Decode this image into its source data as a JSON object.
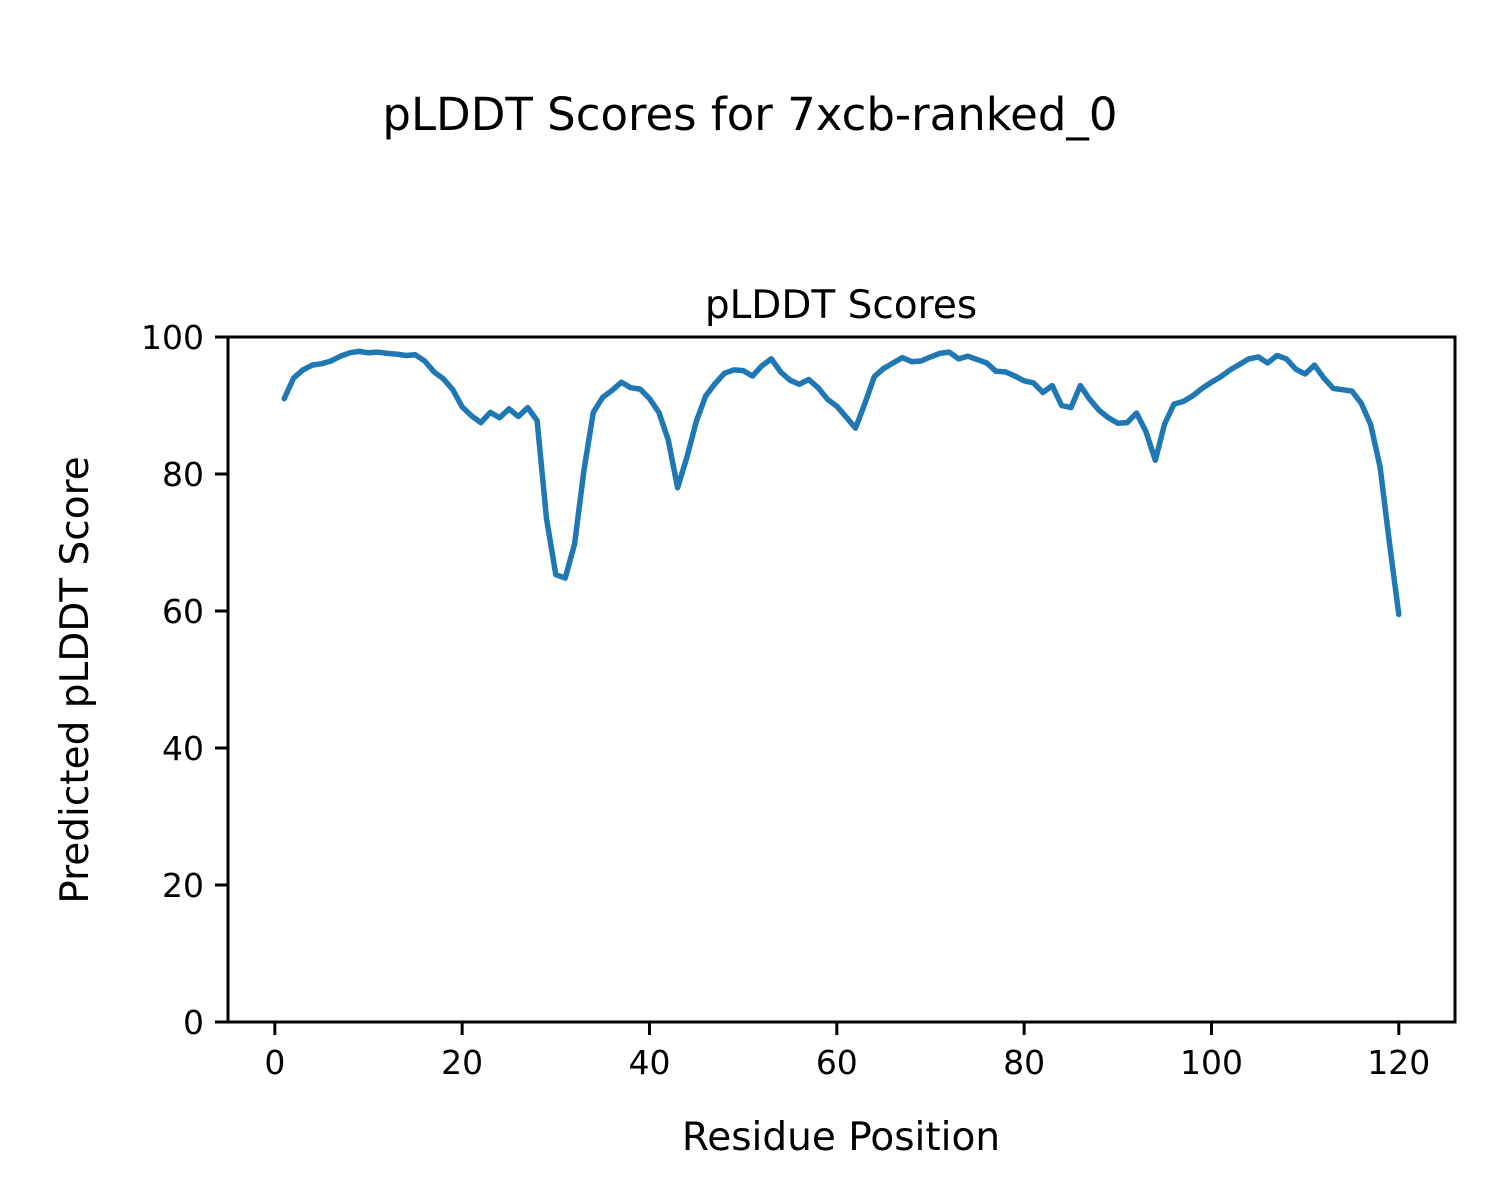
{
  "figure": {
    "suptitle": "pLDDT Scores for 7xcb-ranked_0",
    "background_color": "#ffffff"
  },
  "chart_data": {
    "type": "line",
    "title": "pLDDT Scores",
    "xlabel": "Residue Position",
    "ylabel": "Predicted pLDDT Score",
    "legend": "none",
    "grid": false,
    "line_color": "#1f77b4",
    "axes_color": "#000000",
    "xlim": [
      -5,
      126
    ],
    "ylim": [
      0,
      100
    ],
    "x_ticks": [
      0,
      20,
      40,
      60,
      80,
      100,
      120
    ],
    "y_ticks": [
      0,
      20,
      40,
      60,
      80,
      100
    ],
    "x": [
      1,
      2,
      3,
      4,
      5,
      6,
      7,
      8,
      9,
      10,
      11,
      12,
      13,
      14,
      15,
      16,
      17,
      18,
      19,
      20,
      21,
      22,
      23,
      24,
      25,
      26,
      27,
      28,
      29,
      30,
      31,
      32,
      33,
      34,
      35,
      36,
      37,
      38,
      39,
      40,
      41,
      42,
      43,
      44,
      45,
      46,
      47,
      48,
      49,
      50,
      51,
      52,
      53,
      54,
      55,
      56,
      57,
      58,
      59,
      60,
      61,
      62,
      63,
      64,
      65,
      66,
      67,
      68,
      69,
      70,
      71,
      72,
      73,
      74,
      75,
      76,
      77,
      78,
      79,
      80,
      81,
      82,
      83,
      84,
      85,
      86,
      87,
      88,
      89,
      90,
      91,
      92,
      93,
      94,
      95,
      96,
      97,
      98,
      99,
      100,
      101,
      102,
      103,
      104,
      105,
      106,
      107,
      108,
      109,
      110,
      111,
      112,
      113,
      114,
      115,
      116,
      117,
      118,
      119,
      120
    ],
    "values": [
      91.0,
      94.0,
      95.2,
      95.9,
      96.1,
      96.5,
      97.2,
      97.7,
      97.9,
      97.7,
      97.8,
      97.6,
      97.5,
      97.3,
      97.4,
      96.5,
      94.9,
      93.9,
      92.3,
      89.8,
      88.5,
      87.5,
      89.0,
      88.2,
      89.5,
      88.4,
      89.7,
      87.8,
      73.5,
      65.3,
      64.8,
      69.8,
      80.5,
      89.0,
      91.2,
      92.2,
      93.4,
      92.6,
      92.4,
      91.0,
      89.0,
      85.0,
      78.0,
      82.5,
      87.7,
      91.4,
      93.2,
      94.7,
      95.2,
      95.1,
      94.3,
      95.8,
      96.8,
      94.9,
      93.7,
      93.1,
      93.8,
      92.6,
      90.9,
      89.9,
      88.3,
      86.7,
      90.3,
      94.2,
      95.4,
      96.2,
      97.0,
      96.4,
      96.5,
      97.1,
      97.6,
      97.8,
      96.8,
      97.2,
      96.7,
      96.2,
      95.0,
      94.9,
      94.3,
      93.6,
      93.3,
      91.9,
      92.9,
      90.0,
      89.7,
      92.9,
      90.9,
      89.3,
      88.2,
      87.4,
      87.5,
      88.9,
      86.2,
      82.0,
      87.3,
      90.2,
      90.6,
      91.4,
      92.5,
      93.4,
      94.2,
      95.2,
      96.0,
      96.8,
      97.1,
      96.2,
      97.3,
      96.8,
      95.3,
      94.6,
      95.9,
      94.0,
      92.5,
      92.3,
      92.1,
      90.3,
      87.2,
      81.0,
      70.0,
      59.5
    ]
  }
}
